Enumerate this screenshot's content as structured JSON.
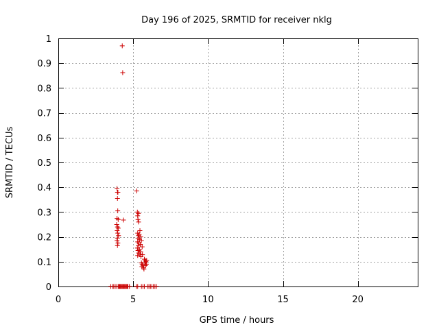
{
  "chart_data": {
    "type": "scatter",
    "title": "Day 196 of 2025, SRMTID for receiver nklg",
    "xlabel": "GPS time / hours",
    "ylabel": "SRMTID / TECUs",
    "xlim": [
      0,
      24
    ],
    "ylim": [
      0,
      1
    ],
    "grid": true,
    "x_ticks": [
      0,
      5,
      10,
      15,
      20
    ],
    "x_tick_labels": [
      "0",
      "5",
      "10",
      "15",
      "20"
    ],
    "y_ticks": [
      0,
      0.1,
      0.2,
      0.3,
      0.4,
      0.5,
      0.6,
      0.7,
      0.8,
      0.9,
      1
    ],
    "y_tick_labels": [
      "0",
      "0.1",
      "0.2",
      "0.3",
      "0.4",
      "0.5",
      "0.6",
      "0.7",
      "0.8",
      "0.9",
      "1"
    ],
    "marker": "+",
    "color": "#cc0000",
    "series": [
      {
        "name": "SRMTID",
        "points": [
          [
            4.27,
            0.97
          ],
          [
            4.3,
            0.862
          ],
          [
            3.92,
            0.395
          ],
          [
            3.95,
            0.38
          ],
          [
            3.98,
            0.38
          ],
          [
            3.95,
            0.355
          ],
          [
            3.97,
            0.305
          ],
          [
            3.92,
            0.275
          ],
          [
            4.0,
            0.27
          ],
          [
            4.35,
            0.268
          ],
          [
            3.9,
            0.25
          ],
          [
            3.95,
            0.24
          ],
          [
            4.0,
            0.235
          ],
          [
            3.93,
            0.225
          ],
          [
            3.97,
            0.215
          ],
          [
            4.02,
            0.205
          ],
          [
            3.95,
            0.195
          ],
          [
            3.92,
            0.185
          ],
          [
            3.98,
            0.175
          ],
          [
            3.95,
            0.165
          ],
          [
            5.23,
            0.385
          ],
          [
            5.28,
            0.3
          ],
          [
            5.35,
            0.295
          ],
          [
            5.3,
            0.285
          ],
          [
            5.32,
            0.27
          ],
          [
            5.36,
            0.26
          ],
          [
            5.45,
            0.225
          ],
          [
            5.3,
            0.215
          ],
          [
            5.4,
            0.21
          ],
          [
            5.35,
            0.205
          ],
          [
            5.5,
            0.2
          ],
          [
            5.32,
            0.195
          ],
          [
            5.42,
            0.19
          ],
          [
            5.55,
            0.185
          ],
          [
            5.3,
            0.18
          ],
          [
            5.38,
            0.175
          ],
          [
            5.48,
            0.17
          ],
          [
            5.35,
            0.165
          ],
          [
            5.6,
            0.16
          ],
          [
            5.28,
            0.155
          ],
          [
            5.42,
            0.15
          ],
          [
            5.32,
            0.145
          ],
          [
            5.5,
            0.14
          ],
          [
            5.36,
            0.135
          ],
          [
            5.45,
            0.13
          ],
          [
            5.62,
            0.128
          ],
          [
            5.3,
            0.125
          ],
          [
            5.52,
            0.12
          ],
          [
            5.55,
            0.095
          ],
          [
            5.6,
            0.09
          ],
          [
            5.65,
            0.085
          ],
          [
            5.58,
            0.08
          ],
          [
            5.7,
            0.075
          ],
          [
            5.75,
            0.11
          ],
          [
            5.8,
            0.105
          ],
          [
            5.85,
            0.1
          ],
          [
            5.78,
            0.095
          ],
          [
            5.88,
            0.09
          ],
          [
            5.82,
            0.085
          ],
          [
            5.9,
            0.105
          ],
          [
            5.72,
            0.07
          ],
          [
            3.5,
            0
          ],
          [
            3.6,
            0
          ],
          [
            3.7,
            0
          ],
          [
            3.8,
            0
          ],
          [
            3.9,
            0
          ],
          [
            4.0,
            0
          ],
          [
            4.05,
            0
          ],
          [
            4.1,
            0
          ],
          [
            4.15,
            0
          ],
          [
            4.2,
            0
          ],
          [
            4.25,
            0
          ],
          [
            4.3,
            0
          ],
          [
            4.35,
            0
          ],
          [
            4.4,
            0
          ],
          [
            4.45,
            0
          ],
          [
            4.5,
            0
          ],
          [
            4.55,
            0
          ],
          [
            4.6,
            0
          ],
          [
            4.65,
            0
          ],
          [
            4.75,
            0
          ],
          [
            5.2,
            0
          ],
          [
            5.3,
            0
          ],
          [
            5.55,
            0
          ],
          [
            5.65,
            0
          ],
          [
            5.75,
            0
          ],
          [
            5.95,
            0
          ],
          [
            6.05,
            0
          ],
          [
            6.15,
            0
          ],
          [
            6.25,
            0
          ],
          [
            6.35,
            0
          ],
          [
            6.45,
            0
          ],
          [
            6.55,
            0
          ]
        ]
      }
    ]
  }
}
